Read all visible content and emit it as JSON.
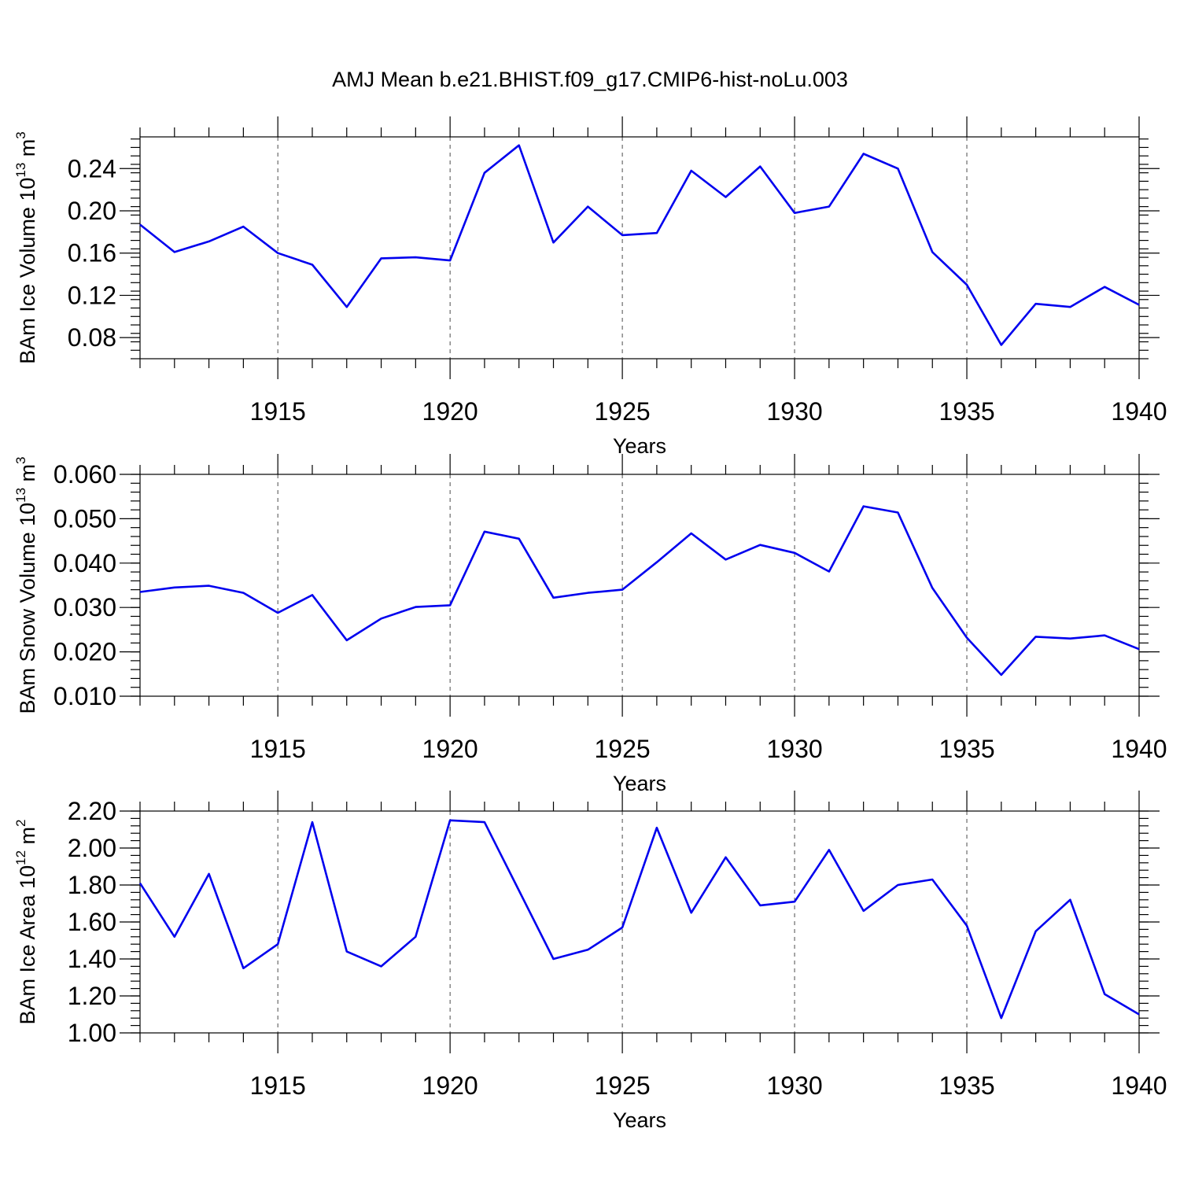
{
  "title": "AMJ Mean b.e21.BHIST.f09_g17.CMIP6-hist-noLu.003",
  "colors": {
    "line": "#0000ee",
    "axis": "#000000"
  },
  "chart_data": [
    {
      "type": "line",
      "xlabel": "Years",
      "ylabel": "BAm Ice Volume 10",
      "ylabel_sup": "13",
      "ylabel_unit": " m",
      "ylabel_unit_sup": "3",
      "xlim": [
        1911,
        1940
      ],
      "ylim": [
        0.06,
        0.27
      ],
      "xticks": [
        1915,
        1920,
        1925,
        1930,
        1935,
        1940
      ],
      "xtick_labels": [
        "1915",
        "1920",
        "1925",
        "1930",
        "1935",
        "1940"
      ],
      "yticks": [
        0.08,
        0.12,
        0.16,
        0.2,
        0.24
      ],
      "ytick_labels": [
        "0.08",
        "0.12",
        "0.16",
        "0.20",
        "0.24"
      ],
      "y_minor_step": 0.008,
      "grid": "vertical dashed at major x ticks",
      "x": [
        1911,
        1912,
        1913,
        1914,
        1915,
        1916,
        1917,
        1918,
        1919,
        1920,
        1921,
        1922,
        1923,
        1924,
        1925,
        1926,
        1927,
        1928,
        1929,
        1930,
        1931,
        1932,
        1933,
        1934,
        1935,
        1936,
        1937,
        1938,
        1939,
        1940
      ],
      "series": [
        {
          "values": [
            0.187,
            0.161,
            0.171,
            0.185,
            0.16,
            0.149,
            0.109,
            0.155,
            0.156,
            0.153,
            0.236,
            0.262,
            0.17,
            0.204,
            0.177,
            0.179,
            0.238,
            0.213,
            0.242,
            0.198,
            0.204,
            0.254,
            0.24,
            0.161,
            0.13,
            0.073,
            0.112,
            0.109,
            0.128,
            0.111
          ]
        }
      ]
    },
    {
      "type": "line",
      "xlabel": "Years",
      "ylabel": "BAm Snow Volume 10",
      "ylabel_sup": "13",
      "ylabel_unit": " m",
      "ylabel_unit_sup": "3",
      "xlim": [
        1911,
        1940
      ],
      "ylim": [
        0.01,
        0.06
      ],
      "xticks": [
        1915,
        1920,
        1925,
        1930,
        1935,
        1940
      ],
      "xtick_labels": [
        "1915",
        "1920",
        "1925",
        "1930",
        "1935",
        "1940"
      ],
      "yticks": [
        0.01,
        0.02,
        0.03,
        0.04,
        0.05,
        0.06
      ],
      "ytick_labels": [
        "0.010",
        "0.020",
        "0.030",
        "0.040",
        "0.050",
        "0.060"
      ],
      "y_minor_step": 0.002,
      "grid": "vertical dashed at major x ticks",
      "x": [
        1911,
        1912,
        1913,
        1914,
        1915,
        1916,
        1917,
        1918,
        1919,
        1920,
        1921,
        1922,
        1923,
        1924,
        1925,
        1926,
        1927,
        1928,
        1929,
        1930,
        1931,
        1932,
        1933,
        1934,
        1935,
        1936,
        1937,
        1938,
        1939,
        1940
      ],
      "series": [
        {
          "values": [
            0.0335,
            0.0345,
            0.0349,
            0.0333,
            0.0288,
            0.0328,
            0.0226,
            0.0275,
            0.0301,
            0.0305,
            0.0471,
            0.0455,
            0.0322,
            0.0333,
            0.034,
            0.0402,
            0.0467,
            0.0408,
            0.0441,
            0.0423,
            0.0381,
            0.0528,
            0.0514,
            0.0344,
            0.0232,
            0.0148,
            0.0234,
            0.023,
            0.0237,
            0.0206
          ]
        }
      ]
    },
    {
      "type": "line",
      "xlabel": "Years",
      "ylabel": "BAm Ice Area 10",
      "ylabel_sup": "12",
      "ylabel_unit": " m",
      "ylabel_unit_sup": "2",
      "xlim": [
        1911,
        1940
      ],
      "ylim": [
        1.0,
        2.2
      ],
      "xticks": [
        1915,
        1920,
        1925,
        1930,
        1935,
        1940
      ],
      "xtick_labels": [
        "1915",
        "1920",
        "1925",
        "1930",
        "1935",
        "1940"
      ],
      "yticks": [
        1.0,
        1.2,
        1.4,
        1.6,
        1.8,
        2.0,
        2.2
      ],
      "ytick_labels": [
        "1.00",
        "1.20",
        "1.40",
        "1.60",
        "1.80",
        "2.00",
        "2.20"
      ],
      "y_minor_step": 0.04,
      "grid": "vertical dashed at major x ticks",
      "x": [
        1911,
        1912,
        1913,
        1914,
        1915,
        1916,
        1917,
        1918,
        1919,
        1920,
        1921,
        1922,
        1923,
        1924,
        1925,
        1926,
        1927,
        1928,
        1929,
        1930,
        1931,
        1932,
        1933,
        1934,
        1935,
        1936,
        1937,
        1938,
        1939,
        1940
      ],
      "series": [
        {
          "values": [
            1.81,
            1.52,
            1.86,
            1.35,
            1.48,
            2.14,
            1.44,
            1.36,
            1.52,
            2.15,
            2.14,
            1.77,
            1.4,
            1.45,
            1.57,
            2.11,
            1.65,
            1.95,
            1.69,
            1.71,
            1.99,
            1.66,
            1.8,
            1.83,
            1.58,
            1.08,
            1.55,
            1.72,
            1.21,
            1.1
          ]
        }
      ]
    }
  ]
}
